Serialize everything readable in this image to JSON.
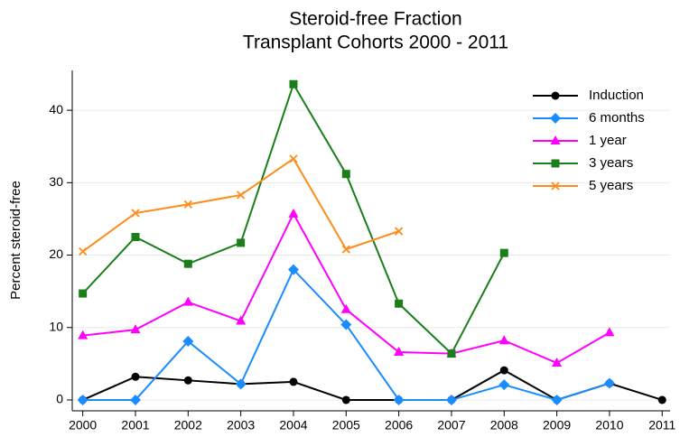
{
  "chart_data": {
    "type": "line",
    "title": "Steroid-free Fraction",
    "subtitle": "Transplant Cohorts 2000 - 2011",
    "y_label": "Percent steroid-free",
    "x": [
      2000,
      2001,
      2002,
      2003,
      2004,
      2005,
      2006,
      2007,
      2008,
      2009,
      2010,
      2011
    ],
    "series": [
      {
        "name": "Induction",
        "color": "#000000",
        "marker": "circle",
        "values": [
          0,
          3.2,
          2.7,
          2.2,
          2.5,
          0,
          0,
          0,
          4.1,
          0,
          2.3,
          0
        ]
      },
      {
        "name": "6 months",
        "color": "#1a8cff",
        "marker": "diamond",
        "values": [
          0,
          0,
          8.1,
          2.2,
          18,
          10.4,
          0,
          0,
          2.1,
          0,
          2.3,
          null
        ]
      },
      {
        "name": "1 year",
        "color": "#ff00ff",
        "marker": "triangle",
        "values": [
          8.9,
          9.7,
          13.5,
          10.9,
          25.7,
          12.5,
          6.6,
          6.4,
          8.2,
          5.1,
          9.3,
          null
        ]
      },
      {
        "name": "3 years",
        "color": "#1a7f1a",
        "marker": "square",
        "values": [
          14.7,
          22.5,
          18.8,
          21.7,
          43.6,
          31.2,
          13.3,
          6.4,
          20.3,
          null,
          null,
          null
        ]
      },
      {
        "name": "5 years",
        "color": "#ff8c1a",
        "marker": "x",
        "values": [
          20.5,
          25.8,
          27,
          28.3,
          33.3,
          20.8,
          23.3,
          null,
          null,
          null,
          null,
          null
        ]
      }
    ],
    "xlim": [
      1999.8,
      2011.15
    ],
    "ylim": [
      -1.5,
      45.5
    ],
    "xticks": [
      2000,
      2001,
      2002,
      2003,
      2004,
      2005,
      2006,
      2007,
      2008,
      2009,
      2010,
      2011
    ],
    "yticks": [
      0,
      10,
      20,
      30,
      40
    ],
    "grid": true,
    "legend": "top-right"
  }
}
